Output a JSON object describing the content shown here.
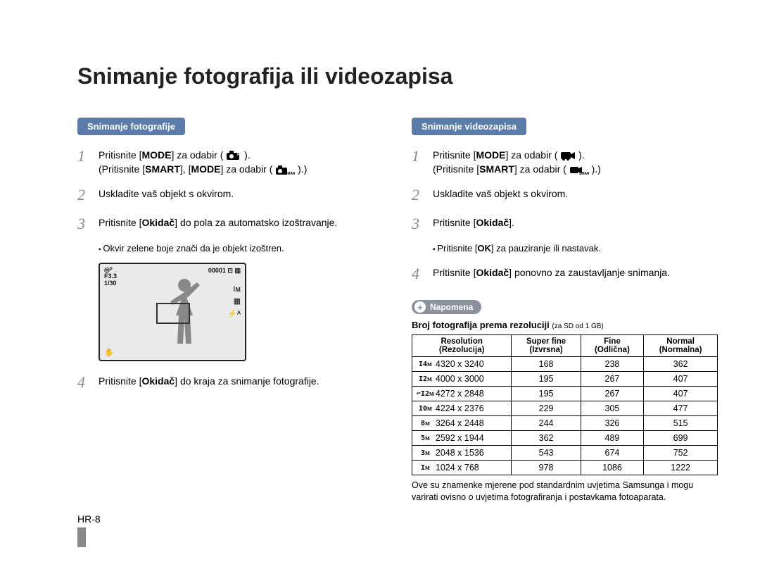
{
  "title": "Snimanje fotografija ili videozapisa",
  "pageNumber": "HR-8",
  "left": {
    "header": "Snimanje fotografije",
    "steps": [
      {
        "n": "1",
        "parts": [
          "Pritisnite [",
          "MODE",
          "] za odabir ( ",
          " )."
        ],
        "line2": [
          "(Pritisnite [",
          "SMART",
          "], [",
          "MODE",
          "] za odabir ( ",
          " ).)"
        ]
      },
      {
        "n": "2",
        "text": "Uskladite vaš objekt s okvirom."
      },
      {
        "n": "3",
        "parts": [
          "Pritisnite [",
          "Okidač",
          "] do pola za automatsko izoštravanje."
        ],
        "bullet": "Okvir zelene boje znači da je objekt izoštren."
      },
      {
        "n": "4",
        "parts": [
          "Pritisnite [",
          "Okidač",
          "] do kraja za snimanje fotografije."
        ]
      }
    ],
    "lcd": {
      "topLeftIcon": "◎ᴾ",
      "fnumber": "F3.3",
      "shutter": "1/30",
      "counter": "00001",
      "rightIcons": [
        "Iᴍ",
        "▦",
        "⚡ᴬ"
      ],
      "bottomLeft": "✋"
    }
  },
  "right": {
    "header": "Snimanje videozapisa",
    "steps": [
      {
        "n": "1",
        "parts": [
          "Pritisnite [",
          "MODE",
          "] za odabir ( ",
          " )."
        ],
        "line2": [
          "(Pritisnite [",
          "SMART",
          "] za odabir ( ",
          " ).)"
        ]
      },
      {
        "n": "2",
        "text": "Uskladite vaš objekt s okvirom."
      },
      {
        "n": "3",
        "parts": [
          "Pritisnite [",
          "Okidač",
          "]."
        ],
        "bullet": [
          "Pritisnite [",
          "OK",
          "] za pauziranje ili nastavak."
        ]
      },
      {
        "n": "4",
        "parts": [
          "Pritisnite [",
          "Okidač",
          "] ponovno za zaustavljanje snimanja."
        ]
      }
    ],
    "noteLabel": "Napomena",
    "tableTitle": "Broj fotografija prema rezoluciji",
    "tableTitleSub": "(za SD od 1 GB)",
    "tableHeaders": {
      "resolution": "Resolution",
      "resolutionSub": "(Rezolucija)",
      "superfine": "Super fine",
      "superfineSub": "(Izvrsna)",
      "fine": "Fine",
      "fineSub": "(Odlična)",
      "normal": "Normal",
      "normalSub": "(Normalna)"
    },
    "rows": [
      {
        "icon": "I4ᴍ",
        "dim": "4320 x 3240",
        "sf": "168",
        "f": "238",
        "n": "362"
      },
      {
        "icon": "I2ᴍ",
        "dim": "4000 x 3000",
        "sf": "195",
        "f": "267",
        "n": "407"
      },
      {
        "icon": "⌐I2ᴍ",
        "dim": "4272 x 2848",
        "sf": "195",
        "f": "267",
        "n": "407"
      },
      {
        "icon": "I0ᴍ",
        "dim": "4224 x 2376",
        "sf": "229",
        "f": "305",
        "n": "477"
      },
      {
        "icon": "8ᴍ",
        "dim": "3264 x 2448",
        "sf": "244",
        "f": "326",
        "n": "515"
      },
      {
        "icon": "5ᴍ",
        "dim": "2592 x 1944",
        "sf": "362",
        "f": "489",
        "n": "699"
      },
      {
        "icon": "3ᴍ",
        "dim": "2048 x 1536",
        "sf": "543",
        "f": "674",
        "n": "752"
      },
      {
        "icon": "Iᴍ",
        "dim": "1024 x 768",
        "sf": "978",
        "f": "1086",
        "n": "1222"
      }
    ],
    "footnote": "Ove su znamenke mjerene pod standardnim uvjetima Samsunga i mogu varirati ovisno o uvjetima fotografiranja i postavkama fotoaparata."
  },
  "colors": {
    "headerBg": "#5b7ba8",
    "headerText": "#ffffff",
    "notePillBg": "#8a92a0",
    "stepNum": "#888888",
    "border": "#000000",
    "background": "#ffffff"
  }
}
